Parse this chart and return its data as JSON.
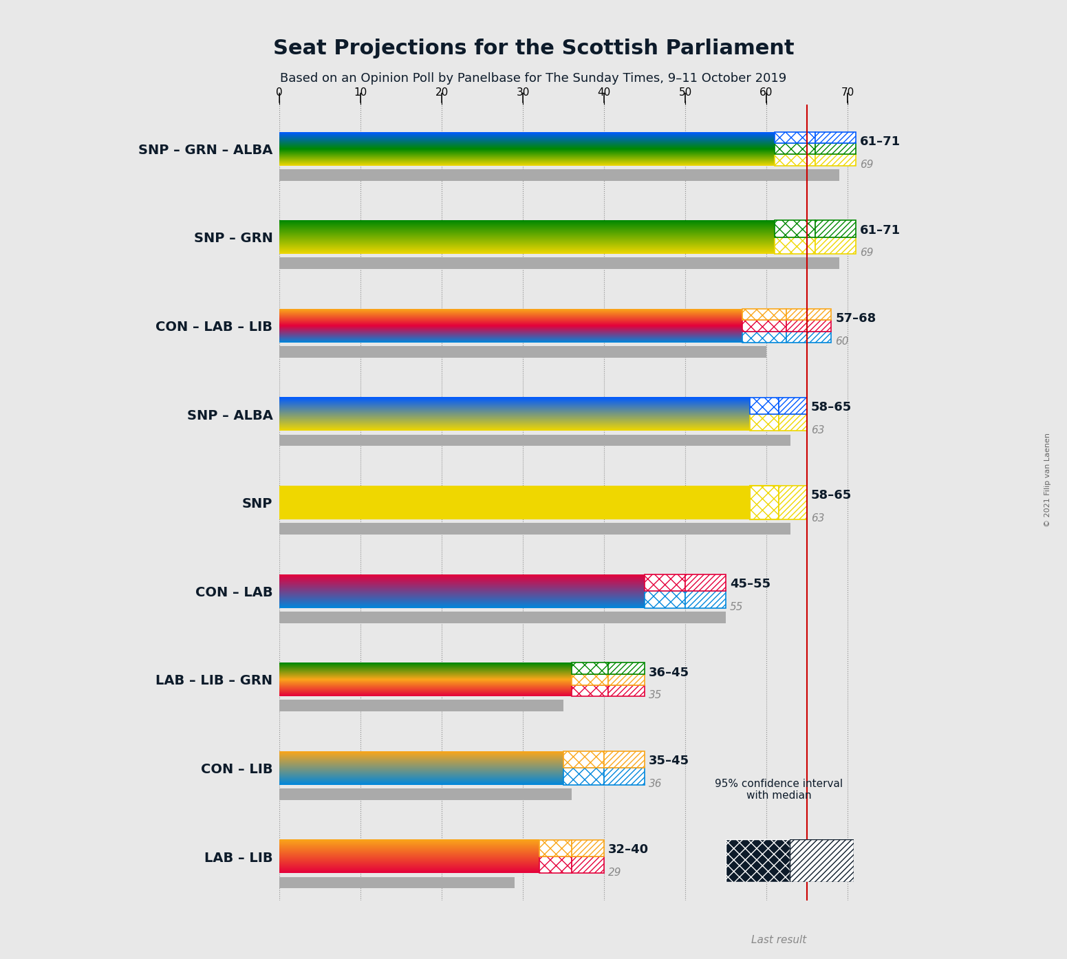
{
  "title": "Seat Projections for the Scottish Parliament",
  "subtitle": "Based on an Opinion Poll by Panelbase for The Sunday Times, 9–11 October 2019",
  "copyright": "© 2021 Filip van Laenen",
  "background_color": "#e8e8e8",
  "majority_line": 65,
  "x_ticks": [
    0,
    10,
    20,
    30,
    40,
    50,
    60,
    70
  ],
  "x_max": 80,
  "coalitions": [
    {
      "label": "SNP – GRN – ALBA",
      "parties": [
        "SNP",
        "GRN",
        "ALBA"
      ],
      "colors": [
        "#EFD700",
        "#008800",
        "#005AFF"
      ],
      "ci_low": 61,
      "ci_high": 71,
      "median": 69,
      "last_result": 69,
      "ci_color": [
        "#EFD700",
        "#008800",
        "#005AFF"
      ]
    },
    {
      "label": "SNP – GRN",
      "parties": [
        "SNP",
        "GRN"
      ],
      "colors": [
        "#EFD700",
        "#008800"
      ],
      "ci_low": 61,
      "ci_high": 71,
      "median": 69,
      "last_result": 69,
      "ci_color": [
        "#EFD700",
        "#008800"
      ]
    },
    {
      "label": "CON – LAB – LIB",
      "parties": [
        "CON",
        "LAB",
        "LIB"
      ],
      "colors": [
        "#0087DC",
        "#E4003B",
        "#FAA61A"
      ],
      "ci_low": 57,
      "ci_high": 68,
      "median": 60,
      "last_result": 60,
      "ci_color": [
        "#0087DC",
        "#E4003B",
        "#FAA61A"
      ]
    },
    {
      "label": "SNP – ALBA",
      "parties": [
        "SNP",
        "ALBA"
      ],
      "colors": [
        "#EFD700",
        "#005AFF"
      ],
      "ci_low": 58,
      "ci_high": 65,
      "median": 63,
      "last_result": 63,
      "ci_color": [
        "#EFD700",
        "#005AFF"
      ]
    },
    {
      "label": "SNP",
      "parties": [
        "SNP"
      ],
      "colors": [
        "#EFD700"
      ],
      "ci_low": 58,
      "ci_high": 65,
      "median": 63,
      "last_result": 63,
      "ci_color": [
        "#EFD700"
      ],
      "underline": true
    },
    {
      "label": "CON – LAB",
      "parties": [
        "CON",
        "LAB"
      ],
      "colors": [
        "#0087DC",
        "#E4003B"
      ],
      "ci_low": 45,
      "ci_high": 55,
      "median": 55,
      "last_result": 55,
      "ci_color": [
        "#0087DC",
        "#E4003B"
      ]
    },
    {
      "label": "LAB – LIB – GRN",
      "parties": [
        "LAB",
        "LIB",
        "GRN"
      ],
      "colors": [
        "#E4003B",
        "#FAA61A",
        "#008800"
      ],
      "ci_low": 36,
      "ci_high": 45,
      "median": 35,
      "last_result": 35,
      "ci_color": [
        "#E4003B",
        "#FAA61A",
        "#008800"
      ]
    },
    {
      "label": "CON – LIB",
      "parties": [
        "CON",
        "LIB"
      ],
      "colors": [
        "#0087DC",
        "#FAA61A"
      ],
      "ci_low": 35,
      "ci_high": 45,
      "median": 36,
      "last_result": 36,
      "ci_color": [
        "#0087DC",
        "#FAA61A"
      ]
    },
    {
      "label": "LAB – LIB",
      "parties": [
        "LAB",
        "LIB"
      ],
      "colors": [
        "#E4003B",
        "#FAA61A"
      ],
      "ci_low": 32,
      "ci_high": 40,
      "median": 29,
      "last_result": 29,
      "ci_color": [
        "#E4003B",
        "#FAA61A"
      ]
    }
  ]
}
